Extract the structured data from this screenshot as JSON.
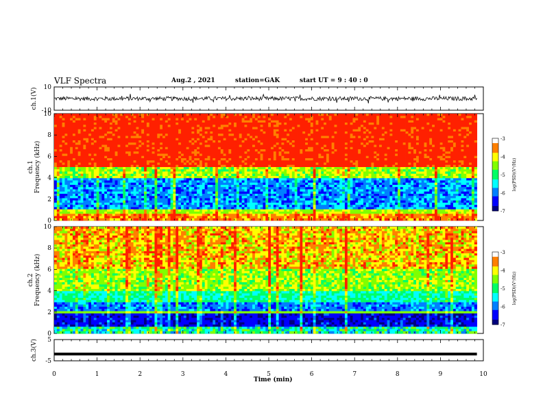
{
  "header": {
    "title": "VLF Spectra",
    "date": "Aug.2  , 2021",
    "station": "station=GAK",
    "start": "start  UT  =   9 : 40 : 0"
  },
  "colors": {
    "trace": "#000000",
    "colormap": [
      "#00007f",
      "#0000ff",
      "#0080ff",
      "#00ffff",
      "#00ff66",
      "#80ff00",
      "#ffff00",
      "#ff8000",
      "#ff2000"
    ]
  },
  "chart_data": [
    {
      "type": "line",
      "panel": "ch1-waveform",
      "ylabel": "ch.1(V)",
      "ylim": [
        -10,
        10
      ],
      "yticks": [
        "10",
        "-10"
      ],
      "series": [
        {
          "description_hidden": true,
          "values_summary": [
            -4,
            4
          ]
        }
      ]
    },
    {
      "type": "heatmap",
      "panel": "ch1-spectrogram",
      "ylabel_line1": "ch.1",
      "ylabel_line2": "Frequency  (kHz)",
      "ylim": [
        0,
        10
      ],
      "yticks": [
        "10",
        "8",
        "6",
        "4",
        "2",
        "0"
      ],
      "colorbar": {
        "label": "log(PSD)(V²/Hz)",
        "range": [
          -7,
          -3
        ],
        "ticks": [
          "-3",
          "-4",
          "-5",
          "-6",
          "-7"
        ]
      }
    },
    {
      "type": "heatmap",
      "panel": "ch2-spectrogram",
      "ylabel_line1": "ch.2",
      "ylabel_line2": "Frequency  (kHz)",
      "ylim": [
        0,
        10
      ],
      "yticks": [
        "10",
        "8",
        "6",
        "4",
        "2",
        "0"
      ],
      "colorbar": {
        "label": "log(PSD)(V²/Hz)",
        "range": [
          -7,
          -3
        ],
        "ticks": [
          "-3",
          "-4",
          "-5",
          "-6",
          "-7"
        ]
      }
    },
    {
      "type": "line",
      "panel": "ch3-waveform",
      "ylabel": "ch.3(V)",
      "ylim": [
        -5,
        5
      ],
      "yticks": [
        "5",
        "-5"
      ],
      "series": [
        {
          "values": [
            -1.8,
            -1.8
          ]
        }
      ]
    }
  ],
  "xaxis": {
    "label": "Time  (min)",
    "range": [
      0,
      10
    ],
    "ticks": [
      "0",
      "1",
      "2",
      "3",
      "4",
      "5",
      "6",
      "7",
      "8",
      "9",
      "10"
    ]
  }
}
